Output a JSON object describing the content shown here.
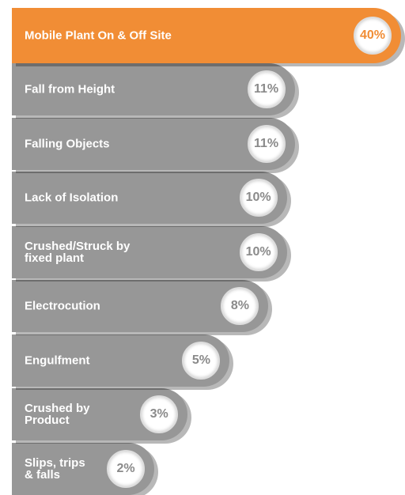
{
  "chart_data": {
    "type": "bar",
    "orientation": "horizontal",
    "log_scale": true,
    "categories": [
      "Mobile Plant On & Off Site",
      "Fall from Height",
      "Falling Objects",
      "Lack of Isolation",
      "Crushed/Struck by\nfixed plant",
      "Electrocution",
      "Engulfment",
      "Crushed by\nProduct",
      "Slips, trips\n& falls"
    ],
    "values": [
      40,
      11,
      11,
      10,
      10,
      8,
      5,
      3,
      2
    ],
    "value_labels": [
      "40%",
      "11%",
      "11%",
      "10%",
      "10%",
      "8%",
      "5%",
      "3%",
      "2%"
    ],
    "colors": [
      "#f18d35",
      "#979797",
      "#979797",
      "#979797",
      "#979797",
      "#979797",
      "#979797",
      "#979797",
      "#979797"
    ]
  }
}
